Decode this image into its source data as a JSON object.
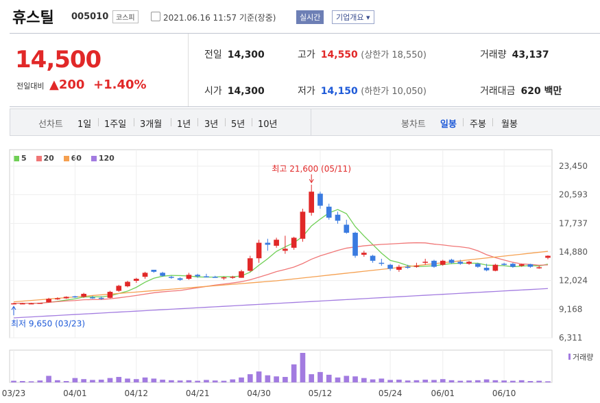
{
  "header": {
    "name": "휴스틸",
    "code": "005010",
    "market": "코스피",
    "datetime": "2021.06.16 11:57 기준(장중)",
    "realtime": "실시간",
    "company": "기업개요"
  },
  "summary": {
    "price": "14,500",
    "change_label": "전일대비",
    "change_value": "▲200",
    "change_pct": "+1.40%",
    "prev_label": "전일",
    "prev": "14,300",
    "high_label": "고가",
    "high": "14,550",
    "high_limit": "(상한가 18,550)",
    "volume_label": "거래량",
    "volume": "43,137",
    "open_label": "시가",
    "open": "14,300",
    "low_label": "저가",
    "low": "14,150",
    "low_limit": "(하한가 10,050)",
    "amount_label": "거래대금",
    "amount": "620 백만"
  },
  "tabs": {
    "line_label": "선차트",
    "line_tabs": [
      "1일",
      "1주일",
      "3개월",
      "1년",
      "3년",
      "5년",
      "10년"
    ],
    "candle_label": "봉차트",
    "candle_tabs": [
      "일봉",
      "주봉",
      "월봉"
    ],
    "selected": "일봉"
  },
  "colors": {
    "up": "#e12828",
    "down": "#3a7be0",
    "ma5": "#6fcf55",
    "ma20": "#f07676",
    "ma60": "#f5a050",
    "ma120": "#a27be0"
  },
  "chart_data": {
    "type": "candlestick",
    "ma_legend": [
      {
        "name": "5",
        "color": "#6fcf55"
      },
      {
        "name": "20",
        "color": "#f07676"
      },
      {
        "name": "60",
        "color": "#f5a050"
      },
      {
        "name": "120",
        "color": "#a27be0"
      }
    ],
    "y_ticks": [
      "23,450",
      "20,593",
      "17,737",
      "14,880",
      "12,024",
      "9,168",
      "6,311"
    ],
    "ylim": [
      6311,
      23450
    ],
    "x_ticks": [
      "03/23",
      "04/01",
      "04/12",
      "04/21",
      "04/30",
      "05/12",
      "05/24",
      "06/01",
      "06/10"
    ],
    "x_tick_index": [
      0,
      7,
      14,
      21,
      28,
      35,
      43,
      49,
      56
    ],
    "max_annotation": "최고 21,600 (05/11)",
    "min_annotation": "최저 9,650 (03/23)",
    "max_index": 34,
    "min_index": 0,
    "volume_legend": "거래량",
    "candles": [
      [
        9700,
        9800,
        9650,
        9750
      ],
      [
        9750,
        9800,
        9700,
        9750
      ],
      [
        9750,
        9800,
        9700,
        9750
      ],
      [
        9750,
        9800,
        9700,
        9800
      ],
      [
        9850,
        10300,
        9800,
        10200
      ],
      [
        10200,
        10350,
        10100,
        10250
      ],
      [
        10250,
        10450,
        10200,
        10400
      ],
      [
        10450,
        10500,
        10300,
        10350
      ],
      [
        10400,
        10800,
        10300,
        10700
      ],
      [
        10350,
        10500,
        10200,
        10300
      ],
      [
        10300,
        10450,
        10100,
        10250
      ],
      [
        10300,
        11000,
        10250,
        10900
      ],
      [
        11000,
        11600,
        10900,
        11500
      ],
      [
        11450,
        12000,
        11350,
        11900
      ],
      [
        12000,
        12300,
        11800,
        12200
      ],
      [
        12400,
        12900,
        12200,
        12800
      ],
      [
        13100,
        13100,
        12800,
        12900
      ],
      [
        12800,
        12900,
        12400,
        12500
      ],
      [
        12400,
        12500,
        12200,
        12300
      ],
      [
        12250,
        12350,
        12000,
        12100
      ],
      [
        12200,
        12800,
        12100,
        12600
      ],
      [
        12600,
        12700,
        12300,
        12450
      ],
      [
        12450,
        12700,
        12350,
        12400
      ],
      [
        12400,
        12500,
        12300,
        12350
      ],
      [
        12300,
        12400,
        12100,
        12350
      ],
      [
        12350,
        12500,
        12200,
        12400
      ],
      [
        12300,
        13100,
        12300,
        12950
      ],
      [
        13000,
        14500,
        12900,
        14250
      ],
      [
        14250,
        16100,
        13800,
        15800
      ],
      [
        15800,
        16200,
        15000,
        15600
      ],
      [
        15500,
        16300,
        15300,
        16100
      ],
      [
        15000,
        16500,
        14700,
        15200
      ],
      [
        15300,
        16400,
        15100,
        16300
      ],
      [
        16200,
        19200,
        15900,
        18900
      ],
      [
        18800,
        21600,
        18500,
        20900
      ],
      [
        20700,
        20900,
        19200,
        19500
      ],
      [
        19400,
        19700,
        18100,
        18300
      ],
      [
        18600,
        18900,
        17700,
        18000
      ],
      [
        17600,
        18100,
        16700,
        16800
      ],
      [
        16800,
        16900,
        14300,
        14500
      ],
      [
        14600,
        15000,
        14400,
        14800
      ],
      [
        14500,
        14600,
        13800,
        14000
      ],
      [
        13800,
        14200,
        13500,
        13700
      ],
      [
        13600,
        13700,
        13000,
        13200
      ],
      [
        13100,
        13600,
        12900,
        13400
      ],
      [
        13400,
        13600,
        13200,
        13300
      ],
      [
        13400,
        13800,
        13300,
        13500
      ],
      [
        13800,
        14200,
        13600,
        13900
      ],
      [
        14000,
        14100,
        13300,
        13400
      ],
      [
        13600,
        14100,
        13500,
        14000
      ],
      [
        14100,
        14200,
        13700,
        13800
      ],
      [
        13900,
        14100,
        13600,
        13700
      ],
      [
        13700,
        14000,
        13600,
        13900
      ],
      [
        13700,
        13800,
        13300,
        13400
      ],
      [
        13300,
        13700,
        12950,
        13050
      ],
      [
        13000,
        13700,
        12950,
        13600
      ],
      [
        13700,
        13800,
        13500,
        13600
      ],
      [
        13700,
        13800,
        13300,
        13400
      ],
      [
        13500,
        13700,
        13400,
        13650
      ],
      [
        13650,
        13700,
        13300,
        13400
      ],
      [
        13300,
        13500,
        13200,
        13350
      ],
      [
        14300,
        14550,
        14150,
        14500
      ]
    ],
    "volumes": [
      30,
      25,
      20,
      35,
      120,
      40,
      25,
      80,
      60,
      45,
      50,
      80,
      100,
      70,
      60,
      90,
      70,
      50,
      40,
      35,
      40,
      30,
      45,
      35,
      30,
      55,
      90,
      150,
      200,
      130,
      110,
      100,
      330,
      540,
      150,
      190,
      140,
      90,
      120,
      110,
      80,
      55,
      70,
      45,
      50,
      35,
      40,
      50,
      45,
      60,
      40,
      30,
      35,
      40,
      55,
      40,
      35,
      30,
      40,
      25,
      30,
      20
    ]
  }
}
